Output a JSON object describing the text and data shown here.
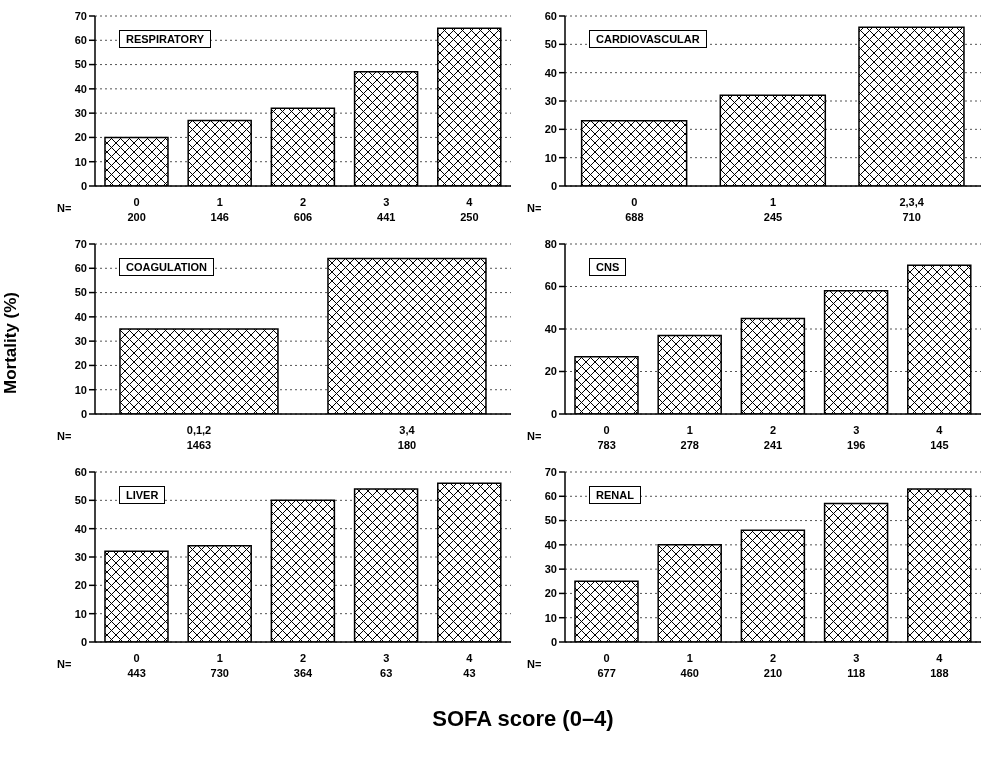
{
  "chart_data": [
    {
      "type": "bar",
      "title": "RESPIRATORY",
      "categories": [
        "0",
        "1",
        "2",
        "3",
        "4"
      ],
      "values": [
        20,
        27,
        32,
        47,
        65
      ],
      "color": "#000000",
      "ylim": [
        0,
        70
      ],
      "yticks": [
        0,
        10,
        20,
        30,
        40,
        50,
        60,
        70
      ],
      "grid": "y",
      "annotations": [
        "N=",
        "200",
        "146",
        "606",
        "441",
        "250"
      ]
    },
    {
      "type": "bar",
      "title": "CARDIOVASCULAR",
      "categories": [
        "0",
        "1",
        "2,3,4"
      ],
      "values": [
        23,
        32,
        56
      ],
      "color": "#000000",
      "ylim": [
        0,
        60
      ],
      "yticks": [
        0,
        10,
        20,
        30,
        40,
        50,
        60
      ],
      "grid": "y",
      "annotations": [
        "N=",
        "688",
        "245",
        "710"
      ]
    },
    {
      "type": "bar",
      "title": "COAGULATION",
      "ylabel": "Mortality (%)",
      "categories": [
        "0,1,2",
        "3,4"
      ],
      "values": [
        35,
        64
      ],
      "color": "#000000",
      "ylim": [
        0,
        70
      ],
      "yticks": [
        0,
        10,
        20,
        30,
        40,
        50,
        60,
        70
      ],
      "grid": "y",
      "annotations": [
        "N=",
        "1463",
        "180"
      ]
    },
    {
      "type": "bar",
      "title": "CNS",
      "categories": [
        "0",
        "1",
        "2",
        "3",
        "4"
      ],
      "values": [
        27,
        37,
        45,
        58,
        70
      ],
      "color": "#000000",
      "ylim": [
        0,
        80
      ],
      "yticks": [
        0,
        20,
        40,
        60,
        80
      ],
      "grid": "y",
      "annotations": [
        "N=",
        "783",
        "278",
        "241",
        "196",
        "145"
      ]
    },
    {
      "type": "bar",
      "title": "LIVER",
      "xlabel": "SOFA score (0–4)",
      "categories": [
        "0",
        "1",
        "2",
        "3",
        "4"
      ],
      "values": [
        32,
        34,
        50,
        54,
        56
      ],
      "color": "#000000",
      "ylim": [
        0,
        60
      ],
      "yticks": [
        0,
        10,
        20,
        30,
        40,
        50,
        60
      ],
      "grid": "y",
      "annotations": [
        "N=",
        "443",
        "730",
        "364",
        "63",
        "43"
      ]
    },
    {
      "type": "bar",
      "title": "RENAL",
      "categories": [
        "0",
        "1",
        "2",
        "3",
        "4"
      ],
      "values": [
        25,
        40,
        46,
        57,
        63
      ],
      "color": "#000000",
      "ylim": [
        0,
        70
      ],
      "yticks": [
        0,
        10,
        20,
        30,
        40,
        50,
        60,
        70
      ],
      "grid": "y",
      "annotations": [
        "N=",
        "677",
        "460",
        "210",
        "118",
        "188"
      ]
    }
  ]
}
